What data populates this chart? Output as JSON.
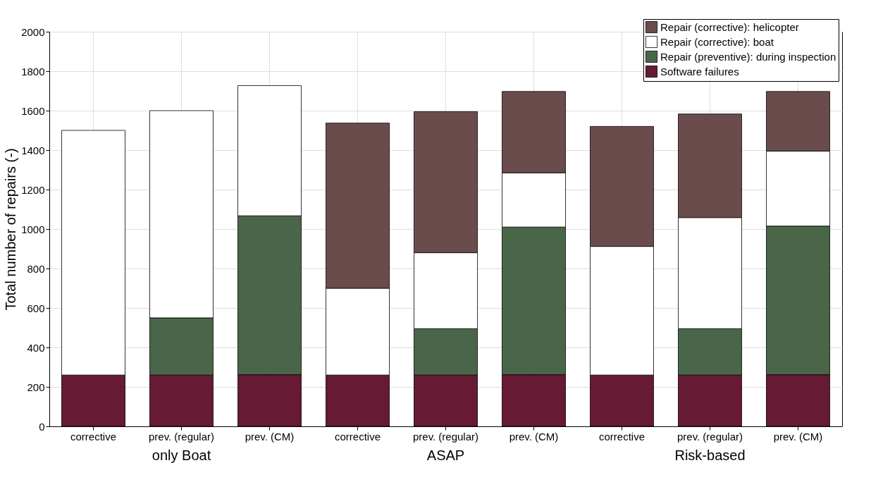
{
  "chart_data": {
    "type": "bar",
    "stacked": true,
    "ylabel": "Total number of repairs (-)",
    "categories": [
      "corrective",
      "prev. (regular)",
      "prev. (CM)",
      "corrective",
      "prev. (regular)",
      "prev. (CM)",
      "corrective",
      "prev. (regular)",
      "prev. (CM)"
    ],
    "series": [
      {
        "name": "Software failures",
        "color": "#661a33",
        "values": [
          260,
          260,
          262,
          260,
          260,
          262,
          260,
          260,
          262
        ]
      },
      {
        "name": "Repair (preventive): during inspection",
        "color": "#4a6649",
        "values": [
          null,
          290,
          805,
          null,
          235,
          748,
          null,
          235,
          753
        ]
      },
      {
        "name": "Repair (corrective): boat",
        "color": "#ffffff",
        "values": [
          1240,
          1050,
          660,
          440,
          385,
          275,
          652,
          563,
          380
        ]
      },
      {
        "name": "Repair (corrective): helicopter",
        "color": "#6b4c4c",
        "values": [
          null,
          null,
          null,
          837,
          715,
          412,
          608,
          525,
          302
        ]
      }
    ],
    "ylim": [
      0,
      2000
    ],
    "yticks": [
      0,
      200,
      400,
      600,
      800,
      1000,
      1200,
      1400,
      1600,
      1800,
      2000
    ],
    "grid": true,
    "legend": "top right",
    "annotations": [
      "only Boat",
      "ASAP",
      "Risk-based"
    ]
  }
}
